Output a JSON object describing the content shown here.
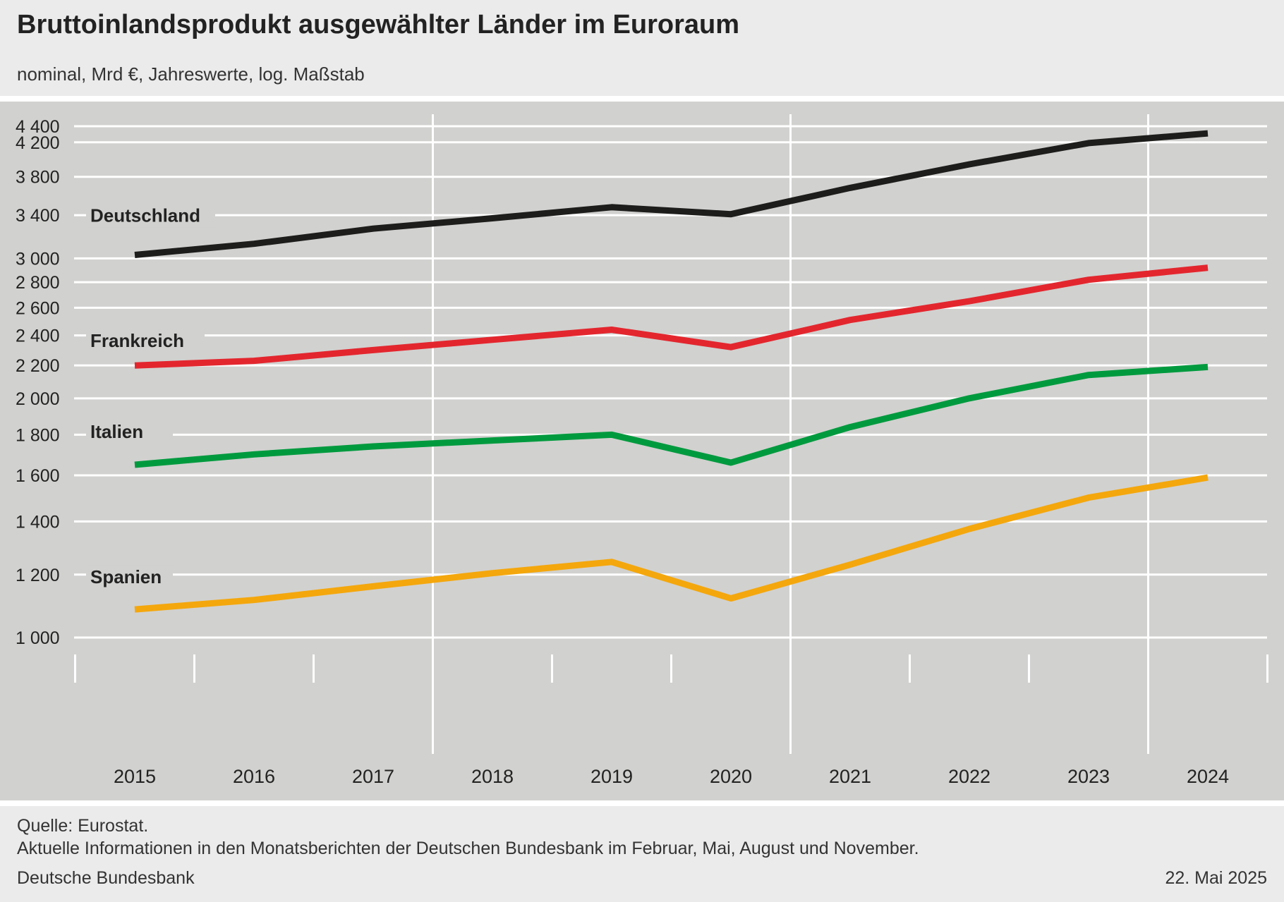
{
  "header": {
    "title": "Bruttoinlandsprodukt ausgewählter Länder im Euroraum",
    "subtitle": "nominal, Mrd €, Jahreswerte, log. Maßstab"
  },
  "footer": {
    "source": "Quelle: Eurostat.",
    "info": "Aktuelle Informationen in den Monatsberichten der Deutschen Bundesbank im Februar, Mai, August und November.",
    "publisher": "Deutsche Bundesbank",
    "date": "22. Mai 2025"
  },
  "chart_data": {
    "type": "line",
    "title": "Bruttoinlandsprodukt ausgewählter Länder im Euroraum",
    "subtitle": "nominal, Mrd €, Jahreswerte, log. Maßstab",
    "xlabel": "",
    "ylabel": "",
    "yscale": "log",
    "ylim": [
      960,
      4450
    ],
    "grid": true,
    "legend": "inline labels at left",
    "categories": [
      "2015",
      "2016",
      "2017",
      "2018",
      "2019",
      "2020",
      "2021",
      "2022",
      "2023",
      "2024"
    ],
    "yticks": [
      1000,
      1200,
      1400,
      1600,
      1800,
      2000,
      2200,
      2400,
      2600,
      2800,
      3000,
      3400,
      3800,
      4200,
      4400
    ],
    "ytick_labels": [
      "1 000",
      "1 200",
      "1 400",
      "1 600",
      "1 800",
      "2 000",
      "2 200",
      "2 400",
      "2 600",
      "2 800",
      "3 000",
      "3 400",
      "3 800",
      "4 200",
      "4 400"
    ],
    "series": [
      {
        "name": "Deutschland",
        "color": "#1d1d1b",
        "values": [
          3030,
          3130,
          3270,
          3370,
          3480,
          3410,
          3680,
          3940,
          4190,
          4310
        ]
      },
      {
        "name": "Frankreich",
        "color": "#e3262e",
        "values": [
          2200,
          2230,
          2300,
          2370,
          2440,
          2320,
          2510,
          2650,
          2820,
          2920
        ]
      },
      {
        "name": "Italien",
        "color": "#009a3e",
        "values": [
          1650,
          1700,
          1740,
          1770,
          1800,
          1660,
          1840,
          2000,
          2140,
          2190
        ]
      },
      {
        "name": "Spanien",
        "color": "#f4a70c",
        "values": [
          1085,
          1115,
          1160,
          1205,
          1245,
          1120,
          1235,
          1370,
          1500,
          1590
        ]
      }
    ]
  }
}
